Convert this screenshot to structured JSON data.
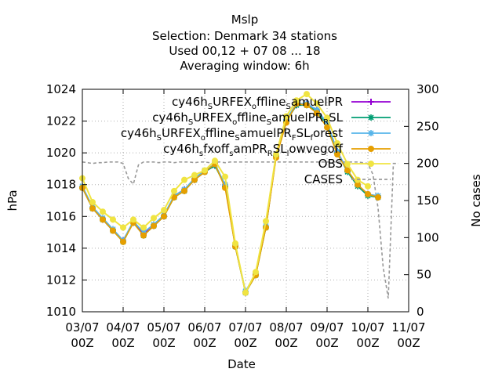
{
  "chart_data": {
    "type": "line",
    "title_lines": [
      "Mslp",
      "Selection: Denmark     34 stations",
      "Used  00,12  + 07 08 ... 18",
      "Averaging window:  6h"
    ],
    "xlabel": "Date",
    "ylabel": "hPa",
    "y2label": "No cases",
    "ylim": [
      1010,
      1024
    ],
    "y2lim": [
      0,
      300
    ],
    "yticks": [
      "1010",
      "1012",
      "1014",
      "1016",
      "1018",
      "1020",
      "1022",
      "1024"
    ],
    "y2ticks": [
      "0",
      "50",
      "100",
      "150",
      "200",
      "250",
      "300"
    ],
    "xticks": [
      {
        "line1": "03/07",
        "line2": "00Z"
      },
      {
        "line1": "04/07",
        "line2": "00Z"
      },
      {
        "line1": "05/07",
        "line2": "00Z"
      },
      {
        "line1": "06/07",
        "line2": "00Z"
      },
      {
        "line1": "07/07",
        "line2": "00Z"
      },
      {
        "line1": "08/07",
        "line2": "00Z"
      },
      {
        "line1": "09/07",
        "line2": "00Z"
      },
      {
        "line1": "10/07",
        "line2": "00Z"
      },
      {
        "line1": "11/07",
        "line2": "00Z"
      }
    ],
    "grid": true,
    "legend_position": "top-right",
    "x_hours": [
      0,
      6,
      12,
      18,
      24,
      30,
      36,
      42,
      48,
      54,
      60,
      66,
      72,
      78,
      84,
      90,
      96,
      102,
      108,
      114,
      120,
      126,
      132,
      138,
      144,
      150,
      156,
      162,
      168,
      174,
      180,
      186
    ],
    "series": [
      {
        "name": "cy46h_S URFEX_o ffline_S amuelPR",
        "legend_parts": [
          [
            "cy46h",
            ""
          ],
          [
            "S",
            "sub"
          ],
          [
            "URFEX",
            ""
          ],
          [
            "o",
            "sub"
          ],
          [
            "ffline",
            ""
          ],
          [
            "S",
            "sub"
          ],
          [
            "amuelPR",
            ""
          ]
        ],
        "color": "#9400d3",
        "marker": "plus",
        "values": [
          1017.8,
          1016.5,
          1015.8,
          1015.1,
          1014.5,
          1015.6,
          1014.9,
          1015.4,
          1016.0,
          1017.3,
          1017.7,
          1018.3,
          1018.8,
          1019.2,
          1018.0,
          1014.2,
          1011.2,
          1012.4,
          1015.3,
          1019.8,
          1022.0,
          1023.0,
          1023.1,
          1022.7,
          1021.9,
          1020.1,
          1018.9,
          1018.0,
          1017.4,
          1017.2
        ]
      },
      {
        "name": "cy46h_S URFEX_o ffline_S amuelPR_R SL",
        "legend_parts": [
          [
            "cy46h",
            ""
          ],
          [
            "S",
            "sub"
          ],
          [
            "URFEX",
            ""
          ],
          [
            "o",
            "sub"
          ],
          [
            "ffline",
            ""
          ],
          [
            "S",
            "sub"
          ],
          [
            "amuelPR",
            ""
          ],
          [
            "R",
            "sub"
          ],
          [
            "SL",
            ""
          ]
        ],
        "color": "#009e73",
        "marker": "star",
        "values": [
          1017.8,
          1016.5,
          1015.8,
          1015.1,
          1014.4,
          1015.6,
          1014.8,
          1015.4,
          1016.0,
          1017.2,
          1017.6,
          1018.3,
          1018.8,
          1019.2,
          1017.9,
          1014.1,
          1011.2,
          1012.3,
          1015.3,
          1019.8,
          1022.0,
          1023.0,
          1023.0,
          1022.6,
          1021.8,
          1020.0,
          1018.8,
          1017.9,
          1017.3,
          1017.2
        ]
      },
      {
        "name": "cy46h_S URFEX_o ffline_S amuelPR_F SL_f orest",
        "legend_parts": [
          [
            "cy46h",
            ""
          ],
          [
            "S",
            "sub"
          ],
          [
            "URFEX",
            ""
          ],
          [
            "o",
            "sub"
          ],
          [
            "ffline",
            ""
          ],
          [
            "S",
            "sub"
          ],
          [
            "amuelPR",
            ""
          ],
          [
            "F",
            "sub"
          ],
          [
            "SL",
            ""
          ],
          [
            "f",
            "sub"
          ],
          [
            "orest",
            ""
          ]
        ],
        "color": "#56b4e9",
        "marker": "star",
        "values": [
          1017.9,
          1016.6,
          1015.9,
          1015.2,
          1014.5,
          1015.7,
          1015.0,
          1015.5,
          1016.1,
          1017.3,
          1017.7,
          1018.4,
          1018.9,
          1019.3,
          1018.0,
          1014.2,
          1011.3,
          1012.4,
          1015.4,
          1019.9,
          1022.1,
          1023.1,
          1023.1,
          1022.7,
          1021.9,
          1020.1,
          1018.9,
          1018.0,
          1017.4,
          1017.3
        ]
      },
      {
        "name": "cy46h_s fxoff_s amPR_R SL_l owvegoff",
        "legend_parts": [
          [
            "cy46h",
            ""
          ],
          [
            "s",
            "sub"
          ],
          [
            "fxoff",
            ""
          ],
          [
            "s",
            "sub"
          ],
          [
            "amPR",
            ""
          ],
          [
            "R",
            "sub"
          ],
          [
            "SL",
            ""
          ],
          [
            "l",
            "sub"
          ],
          [
            "owvegoff",
            ""
          ]
        ],
        "color": "#e69f00",
        "marker": "circle",
        "values": [
          1017.8,
          1016.5,
          1015.8,
          1015.1,
          1014.4,
          1015.6,
          1014.8,
          1015.4,
          1016.0,
          1017.2,
          1017.6,
          1018.3,
          1018.8,
          1019.3,
          1017.8,
          1014.1,
          1011.2,
          1012.3,
          1015.3,
          1019.7,
          1021.9,
          1023.1,
          1023.0,
          1022.5,
          1021.6,
          1019.9,
          1018.9,
          1018.0,
          1017.4,
          1017.2
        ]
      },
      {
        "name": "OBS",
        "legend_parts": [
          [
            "OBS",
            ""
          ]
        ],
        "color": "#f0e442",
        "marker": "circle",
        "values": [
          1018.4,
          1016.9,
          1016.3,
          1015.8,
          1015.3,
          1015.8,
          1015.3,
          1015.9,
          1016.4,
          1017.6,
          1018.3,
          1018.6,
          1018.9,
          1019.5,
          1018.5,
          1014.3,
          1011.2,
          1012.5,
          1015.7,
          1019.9,
          1022.3,
          1023.3,
          1023.7,
          1023.1,
          1022.2,
          1020.6,
          1019.3,
          1018.3,
          1017.9
        ]
      },
      {
        "name": "CASES",
        "legend_parts": [
          [
            "CASES",
            ""
          ]
        ],
        "color": "#999999",
        "marker": "none",
        "axis": "y2",
        "x_hours": [
          0,
          3,
          6,
          9,
          12,
          15,
          18,
          21,
          24,
          27,
          30,
          33,
          36,
          39,
          42,
          45,
          48,
          51,
          54,
          57,
          60,
          63,
          66,
          69,
          72,
          75,
          78,
          81,
          84,
          87,
          90,
          93,
          96,
          99,
          102,
          105,
          108,
          114,
          120,
          126,
          132,
          138,
          144,
          150,
          156,
          162,
          165,
          168,
          171,
          174,
          177,
          180,
          183,
          186
        ],
        "values": [
          202,
          201,
          200,
          201,
          201,
          202,
          202,
          202,
          200,
          180,
          172,
          198,
          202,
          202,
          202,
          201,
          202,
          202,
          201,
          202,
          202,
          202,
          201,
          202,
          202,
          201,
          202,
          202,
          201,
          202,
          202,
          202,
          202,
          202,
          202,
          202,
          202,
          202,
          202,
          202,
          202,
          202,
          202,
          202,
          202,
          202,
          201,
          200,
          185,
          140,
          60,
          18,
          200,
          200
        ]
      }
    ]
  }
}
